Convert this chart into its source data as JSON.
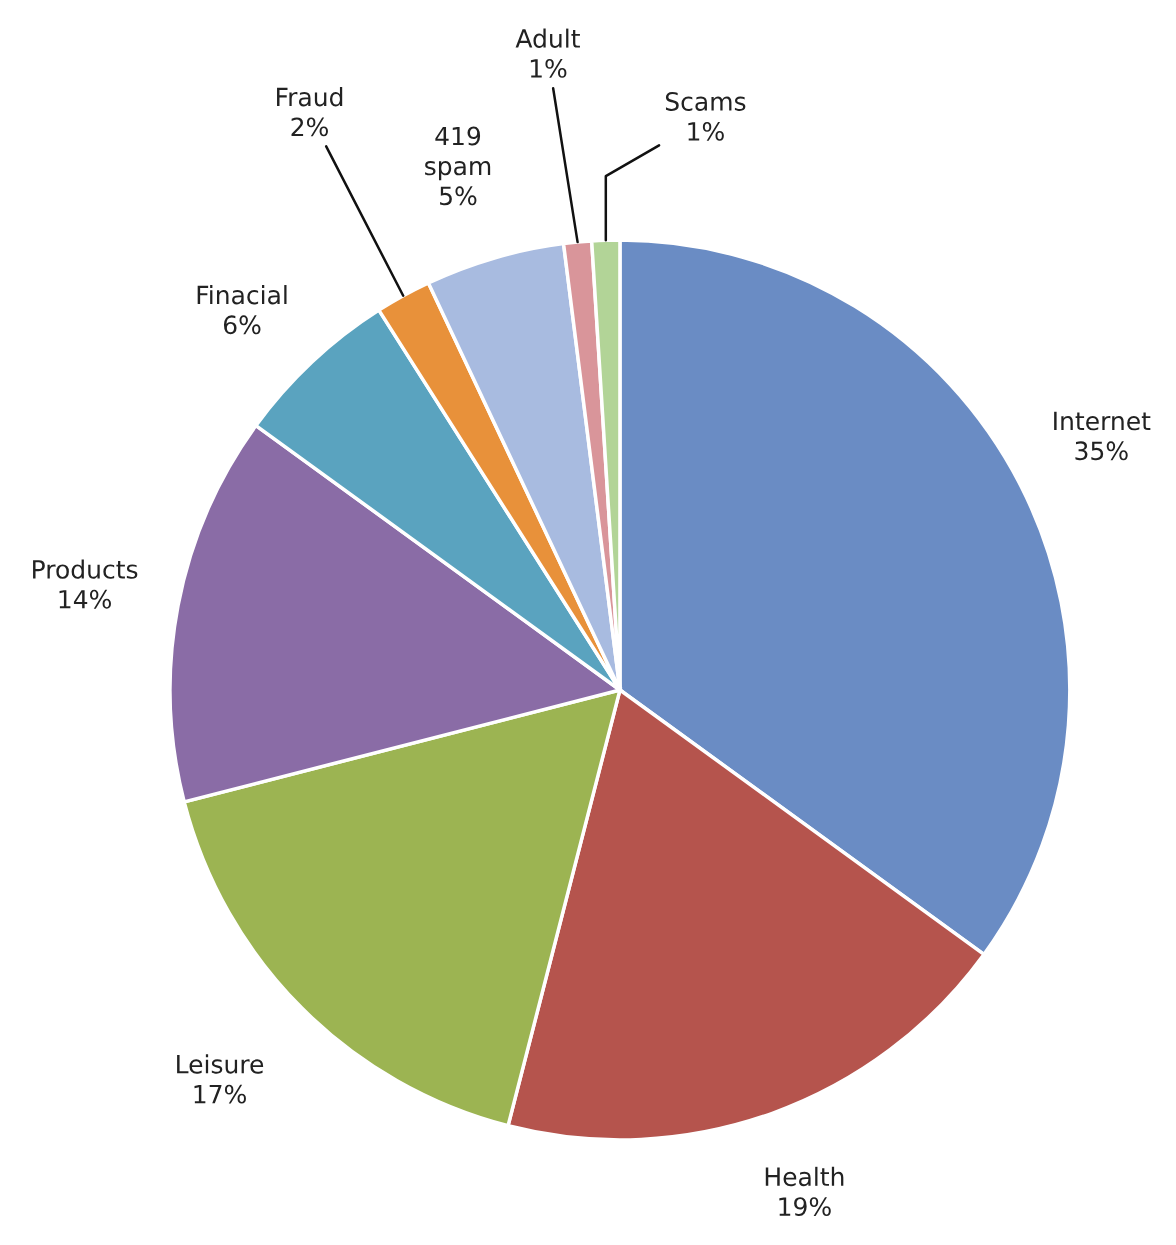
{
  "chart_data": {
    "type": "pie",
    "categories": [
      "Internet",
      "Health",
      "Leisure",
      "Products",
      "Finacial",
      "Fraud",
      "419\nspam",
      "Adult",
      "Scams"
    ],
    "values": [
      35,
      19,
      17,
      14,
      6,
      2,
      5,
      1,
      1
    ],
    "colors": [
      "#6a8cc4",
      "#b5544d",
      "#9cb452",
      "#8a6ca6",
      "#5aa3bf",
      "#e8913a",
      "#a8bbe0",
      "#d9959a",
      "#b2d497"
    ],
    "value_labels": [
      "35%",
      "19%",
      "17%",
      "14%",
      "6%",
      "2%",
      "5%",
      "1%",
      "1%"
    ],
    "legend": false
  }
}
